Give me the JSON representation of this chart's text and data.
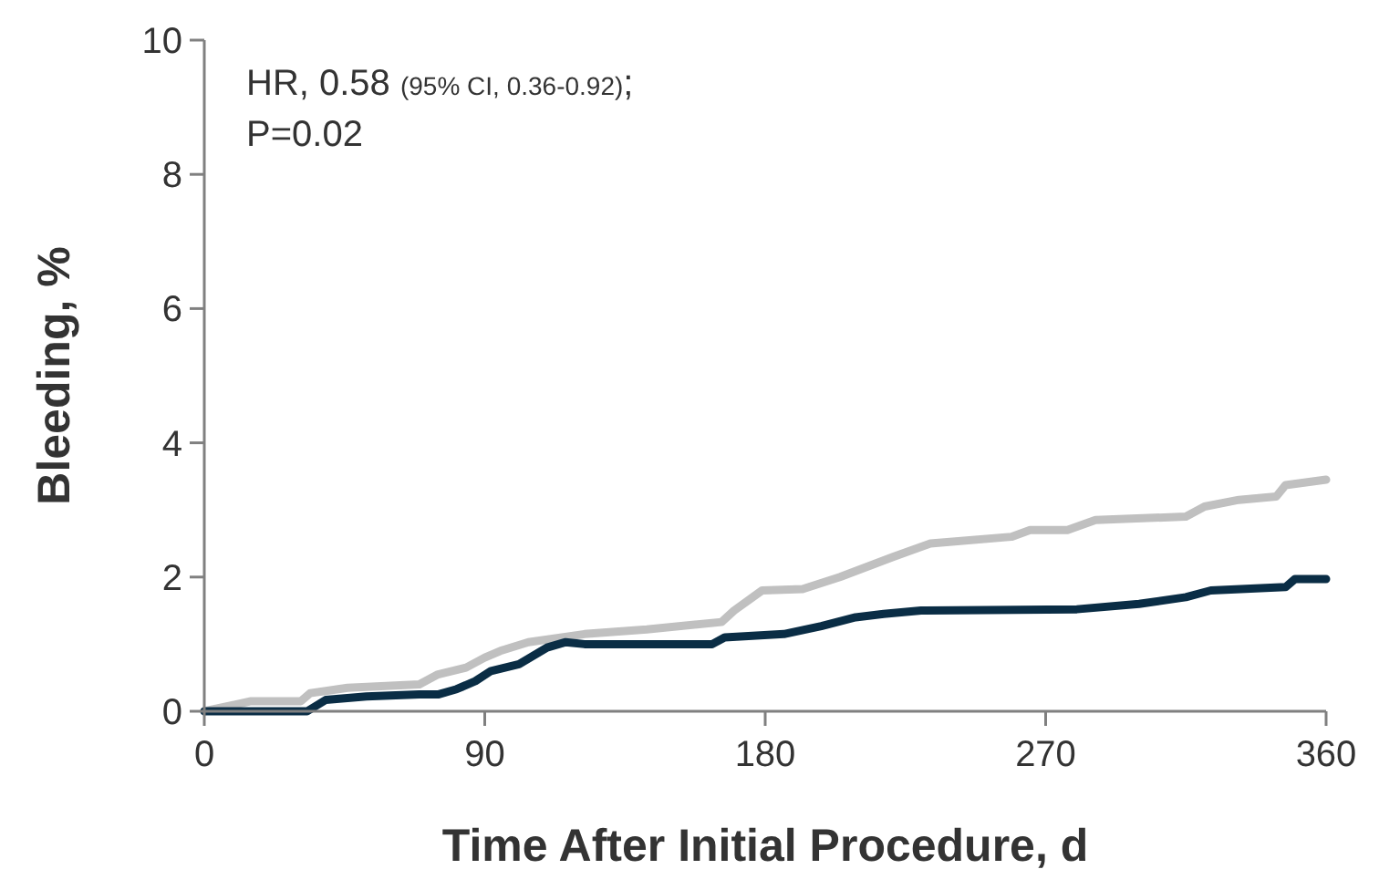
{
  "chart_data": {
    "type": "line",
    "xlabel": "Time After Initial Procedure, d",
    "ylabel": "Bleeding, %",
    "annotations": [
      "HR, 0.58 (95% CI, 0.36-0.92);",
      "P=0.02"
    ],
    "xlim": [
      0,
      360
    ],
    "xticks": [
      0,
      90,
      180,
      270,
      360
    ],
    "ylim": [
      0,
      10
    ],
    "yticks": [
      0,
      2,
      4,
      6,
      8,
      10
    ],
    "grid": false,
    "marker": "none",
    "line_style": "solid",
    "series": [
      {
        "color": "#c0c0c0",
        "x": [
          0,
          15,
          31,
          34,
          46,
          69,
          75,
          84,
          90,
          95,
          104,
          122,
          142,
          166,
          170,
          179,
          192,
          204,
          221,
          233,
          259,
          265,
          277,
          286,
          315,
          321,
          332,
          344,
          347,
          360
        ],
        "values": [
          0,
          0.15,
          0.15,
          0.27,
          0.35,
          0.4,
          0.55,
          0.65,
          0.8,
          0.9,
          1.03,
          1.15,
          1.22,
          1.33,
          1.5,
          1.8,
          1.82,
          2.0,
          2.3,
          2.5,
          2.6,
          2.7,
          2.7,
          2.85,
          2.9,
          3.05,
          3.15,
          3.2,
          3.37,
          3.45
        ]
      },
      {
        "color": "#0a2d45",
        "x": [
          0,
          5,
          33,
          39,
          52,
          69,
          75,
          81,
          87,
          92,
          101,
          110,
          116,
          122,
          163,
          167,
          186,
          198,
          209,
          218,
          230,
          280,
          300,
          315,
          323,
          347,
          350,
          360
        ],
        "values": [
          0,
          0,
          0,
          0.17,
          0.22,
          0.25,
          0.25,
          0.33,
          0.45,
          0.6,
          0.7,
          0.95,
          1.03,
          1.0,
          1.0,
          1.1,
          1.15,
          1.27,
          1.4,
          1.45,
          1.5,
          1.52,
          1.6,
          1.7,
          1.8,
          1.85,
          1.97,
          1.97
        ]
      }
    ]
  }
}
